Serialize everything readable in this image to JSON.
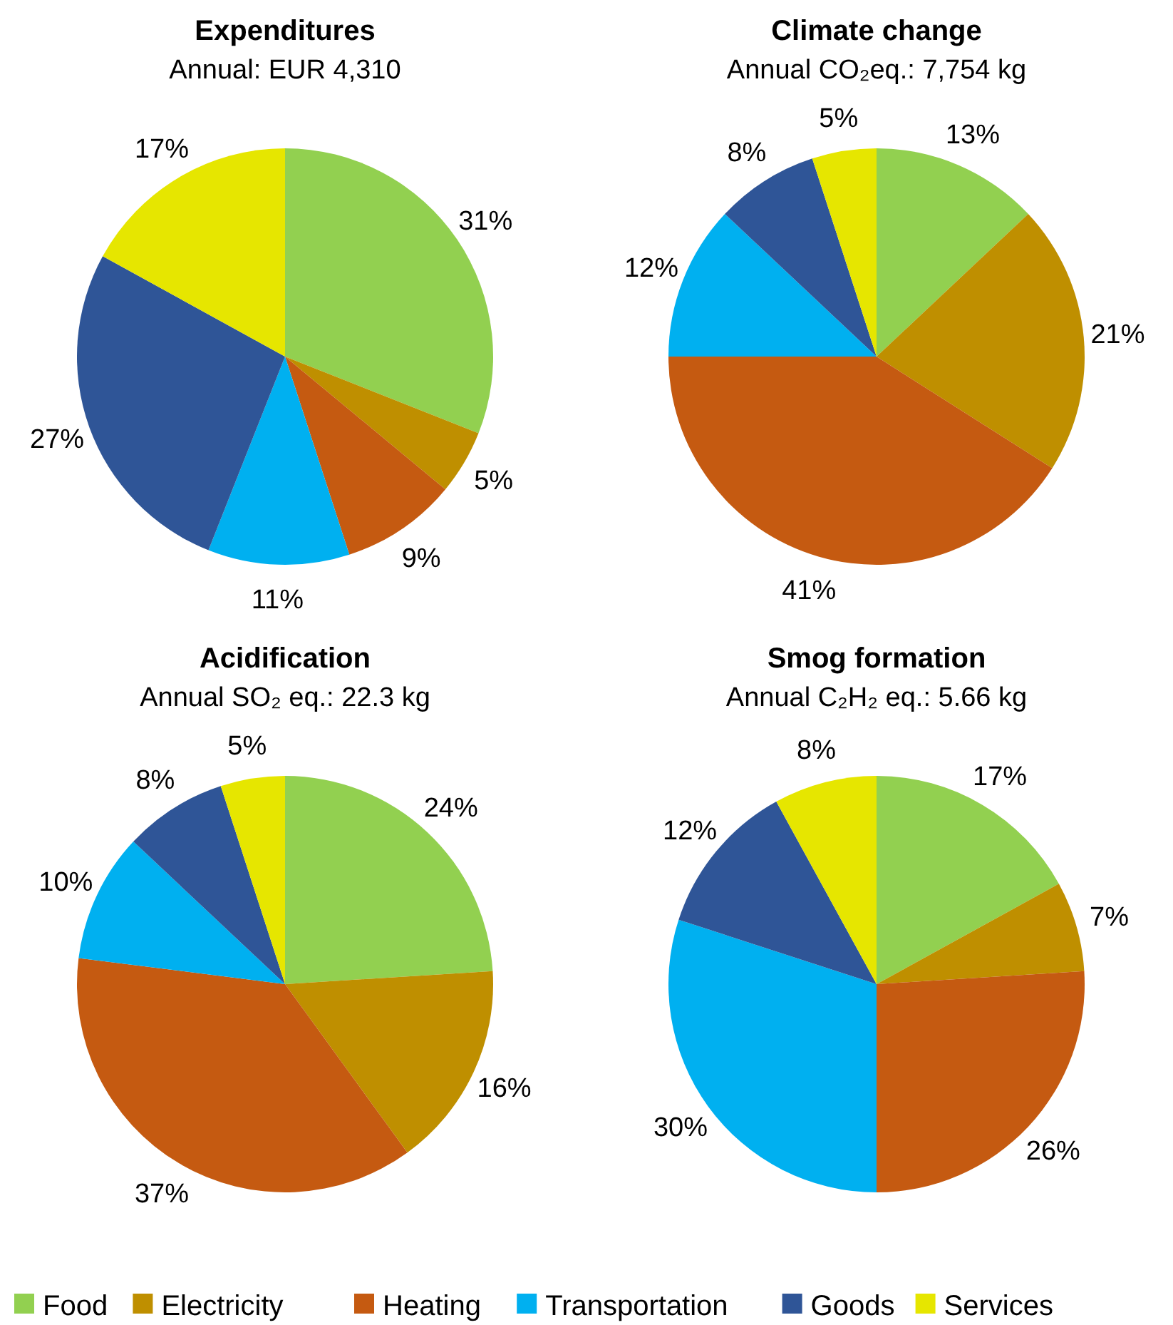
{
  "chart_data": [
    {
      "type": "pie",
      "title": "Expenditures",
      "subtitle": "Annual: EUR 4,310",
      "categories": [
        "Food",
        "Electricity",
        "Heating",
        "Transportation",
        "Goods",
        "Services"
      ],
      "values": [
        31,
        5,
        9,
        11,
        27,
        17
      ],
      "value_labels": [
        "31%",
        "5%",
        "9%",
        "11%",
        "27%",
        "17%"
      ],
      "colors": [
        "#92d050",
        "#bf8f00",
        "#c55a11",
        "#00b0f0",
        "#2f5597",
        "#e6e600"
      ],
      "legend": "bottom"
    },
    {
      "type": "pie",
      "title": "Climate change",
      "subtitle": "Annual CO₂eq.: 7,754 kg",
      "categories": [
        null,
        null,
        null,
        null,
        null,
        null
      ],
      "values": [
        13,
        21,
        41,
        12,
        8,
        5
      ],
      "value_labels": [
        "13%",
        "21%",
        "41%",
        "12%",
        "8%",
        "5%"
      ],
      "colors": [
        "#92d050",
        "#bf8f00",
        "#c55a11",
        "#00b0f0",
        "#2f5597",
        "#e6e600"
      ]
    },
    {
      "type": "pie",
      "title": "Acidification",
      "subtitle": "Annual SO₂ eq.: 22.3 kg",
      "categories": [
        null,
        null,
        null,
        null,
        null,
        null
      ],
      "values": [
        24,
        16,
        37,
        10,
        8,
        5
      ],
      "value_labels": [
        "24%",
        "16%",
        "37%",
        "10%",
        "8%",
        "5%"
      ],
      "colors": [
        "#92d050",
        "#bf8f00",
        "#c55a11",
        "#00b0f0",
        "#2f5597",
        "#e6e600"
      ]
    },
    {
      "type": "pie",
      "title": "Smog formation",
      "subtitle": "Annual C₂H₂ eq.: 5.66 kg",
      "categories": [
        null,
        null,
        null,
        null,
        null,
        null
      ],
      "values": [
        17,
        7,
        26,
        30,
        12,
        8
      ],
      "value_labels": [
        "17%",
        "7%",
        "26%",
        "30%",
        "12%",
        "8%"
      ],
      "colors": [
        "#92d050",
        "#bf8f00",
        "#c55a11",
        "#00b0f0",
        "#2f5597",
        "#e6e600"
      ]
    }
  ]
}
